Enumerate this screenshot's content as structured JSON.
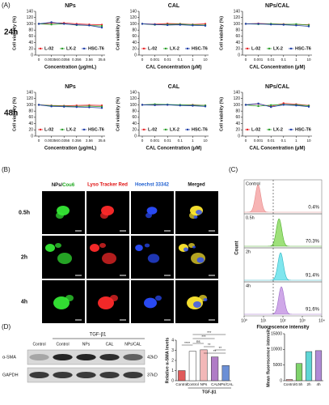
{
  "panel_labels": [
    "(A)",
    "(B)",
    "(C)",
    "(D)"
  ],
  "viability": {
    "rows": [
      "24h",
      "48h"
    ]
  },
  "chart_data": [
    {
      "type": "line",
      "title": "NPs",
      "xlabel": "Concentration (μg/mL)",
      "ylabel": "Cell viability (%)",
      "categories": [
        "0",
        "0.00356",
        "0.0356",
        "0.356",
        "3.56",
        "35.6"
      ],
      "ylim": [
        0,
        140
      ],
      "yticks": [
        0,
        20,
        40,
        60,
        80,
        100,
        120,
        140
      ],
      "legend": "bottom",
      "series": [
        {
          "name": "L-02",
          "color": "#e8272a",
          "values": [
            100,
            102,
            103,
            100,
            98,
            97
          ]
        },
        {
          "name": "LX-2",
          "color": "#2ca02c",
          "values": [
            100,
            98,
            100,
            96,
            95,
            93
          ]
        },
        {
          "name": "HSC-T6",
          "color": "#1f3ea8",
          "values": [
            100,
            105,
            100,
            97,
            95,
            88
          ]
        }
      ]
    },
    {
      "type": "line",
      "title": "CAL",
      "xlabel": "CAL Concentration (μM)",
      "ylabel": "Cell viability (%)",
      "categories": [
        "0",
        "0.001",
        "0.01",
        "0.1",
        "1",
        "10"
      ],
      "ylim": [
        0,
        140
      ],
      "yticks": [
        0,
        20,
        40,
        60,
        80,
        100,
        120,
        140
      ],
      "legend": "bottom",
      "series": [
        {
          "name": "L-02",
          "color": "#e8272a",
          "values": [
            100,
            99,
            101,
            100,
            98,
            100
          ]
        },
        {
          "name": "LX-2",
          "color": "#2ca02c",
          "values": [
            100,
            97,
            98,
            99,
            97,
            96
          ]
        },
        {
          "name": "HSC-T6",
          "color": "#1f3ea8",
          "values": [
            100,
            98,
            96,
            97,
            95,
            94
          ]
        }
      ]
    },
    {
      "type": "line",
      "title": "NPs/CAL",
      "xlabel": "CAL Concentration (μM)",
      "ylabel": "Cell viability (%)",
      "categories": [
        "0",
        "0.001",
        "0.01",
        "0.1",
        "1",
        "10"
      ],
      "ylim": [
        0,
        140
      ],
      "yticks": [
        0,
        20,
        40,
        60,
        80,
        100,
        120,
        140
      ],
      "legend": "bottom",
      "series": [
        {
          "name": "L-02",
          "color": "#e8272a",
          "values": [
            100,
            101,
            100,
            99,
            98,
            97
          ]
        },
        {
          "name": "LX-2",
          "color": "#2ca02c",
          "values": [
            100,
            99,
            100,
            98,
            99,
            96
          ]
        },
        {
          "name": "HSC-T6",
          "color": "#1f3ea8",
          "values": [
            100,
            100,
            98,
            97,
            95,
            92
          ]
        }
      ]
    },
    {
      "type": "line",
      "title": "NPs",
      "xlabel": "Concentration (μg/mL)",
      "ylabel": "Cell viability (%)",
      "categories": [
        "0",
        "0.00356",
        "0.0356",
        "0.356",
        "3.56",
        "35.6"
      ],
      "ylim": [
        0,
        140
      ],
      "yticks": [
        0,
        20,
        40,
        60,
        80,
        100,
        120,
        140
      ],
      "legend": "bottom",
      "series": [
        {
          "name": "L-02",
          "color": "#e8272a",
          "values": [
            100,
            98,
            97,
            98,
            99,
            98
          ]
        },
        {
          "name": "LX-2",
          "color": "#2ca02c",
          "values": [
            100,
            97,
            96,
            95,
            96,
            94
          ]
        },
        {
          "name": "HSC-T6",
          "color": "#1f3ea8",
          "values": [
            100,
            95,
            94,
            93,
            92,
            90
          ]
        }
      ]
    },
    {
      "type": "line",
      "title": "CAL",
      "xlabel": "CAL Concentration (μM)",
      "ylabel": "Cell viability (%)",
      "categories": [
        "0",
        "0.001",
        "0.01",
        "0.1",
        "1",
        "10"
      ],
      "ylim": [
        0,
        140
      ],
      "yticks": [
        0,
        20,
        40,
        60,
        80,
        100,
        120,
        140
      ],
      "legend": "bottom",
      "series": [
        {
          "name": "L-02",
          "color": "#e8272a",
          "values": [
            100,
            101,
            100,
            99,
            100,
            98
          ]
        },
        {
          "name": "LX-2",
          "color": "#2ca02c",
          "values": [
            100,
            102,
            101,
            100,
            99,
            98
          ]
        },
        {
          "name": "HSC-T6",
          "color": "#1f3ea8",
          "values": [
            100,
            99,
            100,
            98,
            97,
            95
          ]
        }
      ]
    },
    {
      "type": "line",
      "title": "NPs/CAL",
      "xlabel": "CAL Concentration (μM)",
      "ylabel": "Cell viability (%)",
      "categories": [
        "0",
        "0.001",
        "0.01",
        "0.1",
        "1",
        "10"
      ],
      "ylim": [
        0,
        140
      ],
      "yticks": [
        0,
        20,
        40,
        60,
        80,
        100,
        120,
        140
      ],
      "legend": "bottom",
      "series": [
        {
          "name": "L-02",
          "color": "#e8272a",
          "values": [
            100,
            103,
            95,
            105,
            102,
            98
          ]
        },
        {
          "name": "LX-2",
          "color": "#2ca02c",
          "values": [
            100,
            96,
            99,
            101,
            100,
            97
          ]
        },
        {
          "name": "HSC-T6",
          "color": "#1f3ea8",
          "values": [
            100,
            104,
            93,
            100,
            98,
            94
          ]
        }
      ]
    },
    {
      "type": "bar",
      "ylabel": "Relative α-SMA levels",
      "categories": [
        "Control",
        "Control",
        "NPs",
        "CAL",
        "NPs/CAL"
      ],
      "values": [
        1,
        2.9,
        3.05,
        2.35,
        1.5
      ],
      "colors": [
        "#e05a5a",
        "#ffffff",
        "#f2b8b8",
        "#b07cc6",
        "#6b8fd6"
      ],
      "ylim": [
        0,
        4
      ],
      "yticks": [
        0,
        1,
        2,
        3,
        4
      ],
      "group_label": "TGF-β1",
      "annotations": [
        "****",
        "ns",
        "**",
        "**",
        "***",
        "***",
        "**"
      ]
    },
    {
      "type": "bar",
      "ylabel": "Mean fluorescence intensity",
      "categories": [
        "Control",
        "0.5h",
        "2h",
        "4h"
      ],
      "values": [
        400,
        5500,
        9300,
        9600
      ],
      "colors": [
        "#f4a6a6",
        "#7fd36b",
        "#5fd6d6",
        "#b08ad6"
      ],
      "ylim": [
        0,
        15000
      ],
      "yticks": [
        0,
        5000,
        10000,
        15000
      ]
    }
  ],
  "microscopy": {
    "columns": [
      [
        "NPs/",
        "Cou6"
      ],
      [
        "Lyso Tracker Red"
      ],
      [
        "Hoechst 33342"
      ],
      [
        "Merged"
      ]
    ],
    "rows": [
      "0.5h",
      "2h",
      "4h"
    ]
  },
  "flow": {
    "samples": [
      "Control",
      "0.5h",
      "2h",
      "4h"
    ],
    "percents": [
      "0.4%",
      "70.3%",
      "91.4%",
      "91.6%"
    ],
    "xlim": [
      1,
      10000
    ],
    "xticks": [
      {
        "value": 1,
        "label": "10⁰"
      },
      {
        "value": 10,
        "label": "10¹"
      },
      {
        "value": 100,
        "label": "10²"
      },
      {
        "value": 1000,
        "label": "10³"
      },
      {
        "value": 10000,
        "label": "10⁴"
      }
    ],
    "xlabel": "Fluorescence intensity",
    "ylabel": "Count"
  },
  "blot": {
    "group": "TGF-β1",
    "lanes": [
      "Control",
      "Control",
      "NPs",
      "CAL",
      "NPs/CAL"
    ],
    "rows": [
      "α-SMA",
      "GAPDH"
    ],
    "sizes": [
      "42kD",
      "37kD"
    ]
  }
}
